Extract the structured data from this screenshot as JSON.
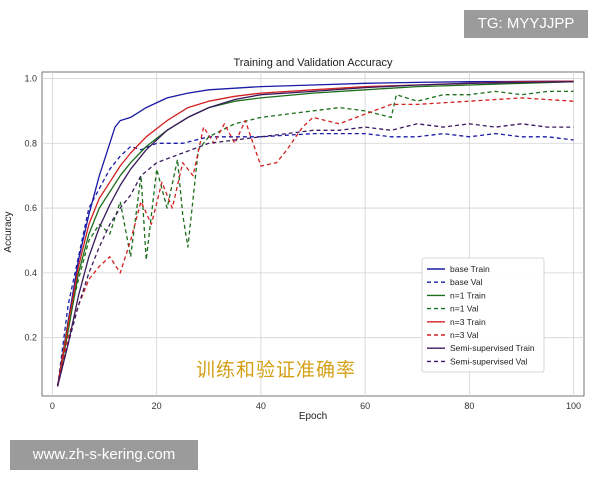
{
  "chart_data": {
    "type": "line",
    "title": "Training and Validation Accuracy",
    "xlabel": "Epoch",
    "ylabel": "Accuracy",
    "xlim": [
      -2,
      102
    ],
    "ylim": [
      0.02,
      1.02
    ],
    "xticks": [
      0,
      20,
      40,
      60,
      80,
      100
    ],
    "yticks": [
      0.2,
      0.4,
      0.6,
      0.8,
      1.0
    ],
    "ytick_labels": [
      "0.2",
      "0.4",
      "0.6",
      "0.8",
      "1.0"
    ],
    "grid": true,
    "legend_position": "lower-right",
    "series": [
      {
        "name": "base Train",
        "color": "#1a1aa6",
        "dash": "solid",
        "x": [
          1,
          3,
          5,
          7,
          9,
          11,
          12,
          13,
          15,
          18,
          22,
          26,
          30,
          40,
          50,
          60,
          70,
          80,
          90,
          100
        ],
        "y": [
          0.05,
          0.25,
          0.44,
          0.58,
          0.7,
          0.8,
          0.85,
          0.87,
          0.88,
          0.91,
          0.94,
          0.955,
          0.965,
          0.975,
          0.98,
          0.985,
          0.988,
          0.99,
          0.991,
          0.992
        ]
      },
      {
        "name": "base Val",
        "color": "#1a1aa6",
        "dash": "dashed",
        "x": [
          1,
          3,
          5,
          7,
          9,
          11,
          13,
          15,
          17,
          20,
          25,
          30,
          40,
          50,
          60,
          65,
          70,
          75,
          80,
          85,
          90,
          95,
          100
        ],
        "y": [
          0.05,
          0.3,
          0.45,
          0.6,
          0.66,
          0.72,
          0.76,
          0.79,
          0.78,
          0.8,
          0.8,
          0.82,
          0.82,
          0.83,
          0.83,
          0.82,
          0.82,
          0.83,
          0.82,
          0.83,
          0.82,
          0.82,
          0.81
        ]
      },
      {
        "name": "n=1 Train",
        "color": "#1b6e1b",
        "dash": "solid",
        "x": [
          1,
          3,
          5,
          7,
          9,
          11,
          13,
          15,
          18,
          22,
          26,
          30,
          35,
          40,
          50,
          60,
          70,
          80,
          90,
          100
        ],
        "y": [
          0.05,
          0.22,
          0.4,
          0.52,
          0.6,
          0.65,
          0.7,
          0.74,
          0.79,
          0.84,
          0.88,
          0.91,
          0.93,
          0.94,
          0.955,
          0.965,
          0.975,
          0.98,
          0.985,
          0.99
        ]
      },
      {
        "name": "n=1 Val",
        "color": "#1b6e1b",
        "dash": "dashed",
        "x": [
          1,
          3,
          5,
          7,
          9,
          11,
          13,
          15,
          17,
          18,
          20,
          22,
          24,
          25,
          26,
          28,
          30,
          35,
          40,
          45,
          50,
          55,
          60,
          65,
          66,
          70,
          75,
          80,
          85,
          90,
          95,
          100
        ],
        "y": [
          0.05,
          0.25,
          0.38,
          0.5,
          0.55,
          0.52,
          0.62,
          0.45,
          0.7,
          0.44,
          0.72,
          0.6,
          0.75,
          0.58,
          0.48,
          0.78,
          0.82,
          0.86,
          0.88,
          0.89,
          0.9,
          0.91,
          0.9,
          0.88,
          0.95,
          0.93,
          0.95,
          0.95,
          0.96,
          0.95,
          0.96,
          0.96
        ]
      },
      {
        "name": "n=3 Train",
        "color": "#d32020",
        "dash": "solid",
        "x": [
          1,
          3,
          5,
          7,
          9,
          11,
          13,
          15,
          18,
          22,
          26,
          30,
          35,
          40,
          50,
          60,
          70,
          80,
          90,
          100
        ],
        "y": [
          0.05,
          0.24,
          0.42,
          0.55,
          0.63,
          0.68,
          0.73,
          0.77,
          0.82,
          0.87,
          0.91,
          0.93,
          0.945,
          0.955,
          0.965,
          0.975,
          0.98,
          0.985,
          0.99,
          0.992
        ]
      },
      {
        "name": "n=3 Val",
        "color": "#d32020",
        "dash": "dashed",
        "x": [
          1,
          3,
          5,
          7,
          9,
          11,
          13,
          15,
          17,
          19,
          21,
          23,
          25,
          27,
          29,
          31,
          33,
          35,
          37,
          40,
          43,
          45,
          48,
          50,
          55,
          60,
          65,
          70,
          80,
          90,
          100
        ],
        "y": [
          0.05,
          0.2,
          0.3,
          0.38,
          0.42,
          0.45,
          0.4,
          0.5,
          0.62,
          0.55,
          0.68,
          0.6,
          0.74,
          0.7,
          0.85,
          0.8,
          0.86,
          0.8,
          0.87,
          0.73,
          0.74,
          0.78,
          0.85,
          0.88,
          0.86,
          0.89,
          0.92,
          0.92,
          0.93,
          0.94,
          0.93
        ]
      },
      {
        "name": "Semi-supervised Train",
        "color": "#3a1a5e",
        "dash": "solid",
        "x": [
          1,
          3,
          5,
          7,
          9,
          11,
          13,
          15,
          18,
          22,
          26,
          30,
          35,
          40,
          50,
          60,
          70,
          80,
          90,
          100
        ],
        "y": [
          0.05,
          0.18,
          0.33,
          0.45,
          0.54,
          0.61,
          0.67,
          0.72,
          0.78,
          0.84,
          0.88,
          0.91,
          0.935,
          0.95,
          0.96,
          0.972,
          0.98,
          0.985,
          0.988,
          0.99
        ]
      },
      {
        "name": "Semi-supervised Val",
        "color": "#3a1a5e",
        "dash": "dashed",
        "x": [
          1,
          3,
          5,
          7,
          9,
          11,
          13,
          15,
          17,
          20,
          25,
          30,
          35,
          40,
          45,
          50,
          55,
          60,
          65,
          70,
          75,
          80,
          85,
          90,
          95,
          100
        ],
        "y": [
          0.05,
          0.18,
          0.3,
          0.4,
          0.48,
          0.55,
          0.6,
          0.64,
          0.7,
          0.74,
          0.77,
          0.8,
          0.81,
          0.82,
          0.83,
          0.84,
          0.84,
          0.85,
          0.84,
          0.86,
          0.85,
          0.86,
          0.85,
          0.86,
          0.85,
          0.85
        ]
      }
    ]
  },
  "overlay": {
    "watermark_top": "TG: MYYJJPP",
    "watermark_bottom": "www.zh-s-kering.com",
    "caption_cn": "训练和验证准确率"
  }
}
